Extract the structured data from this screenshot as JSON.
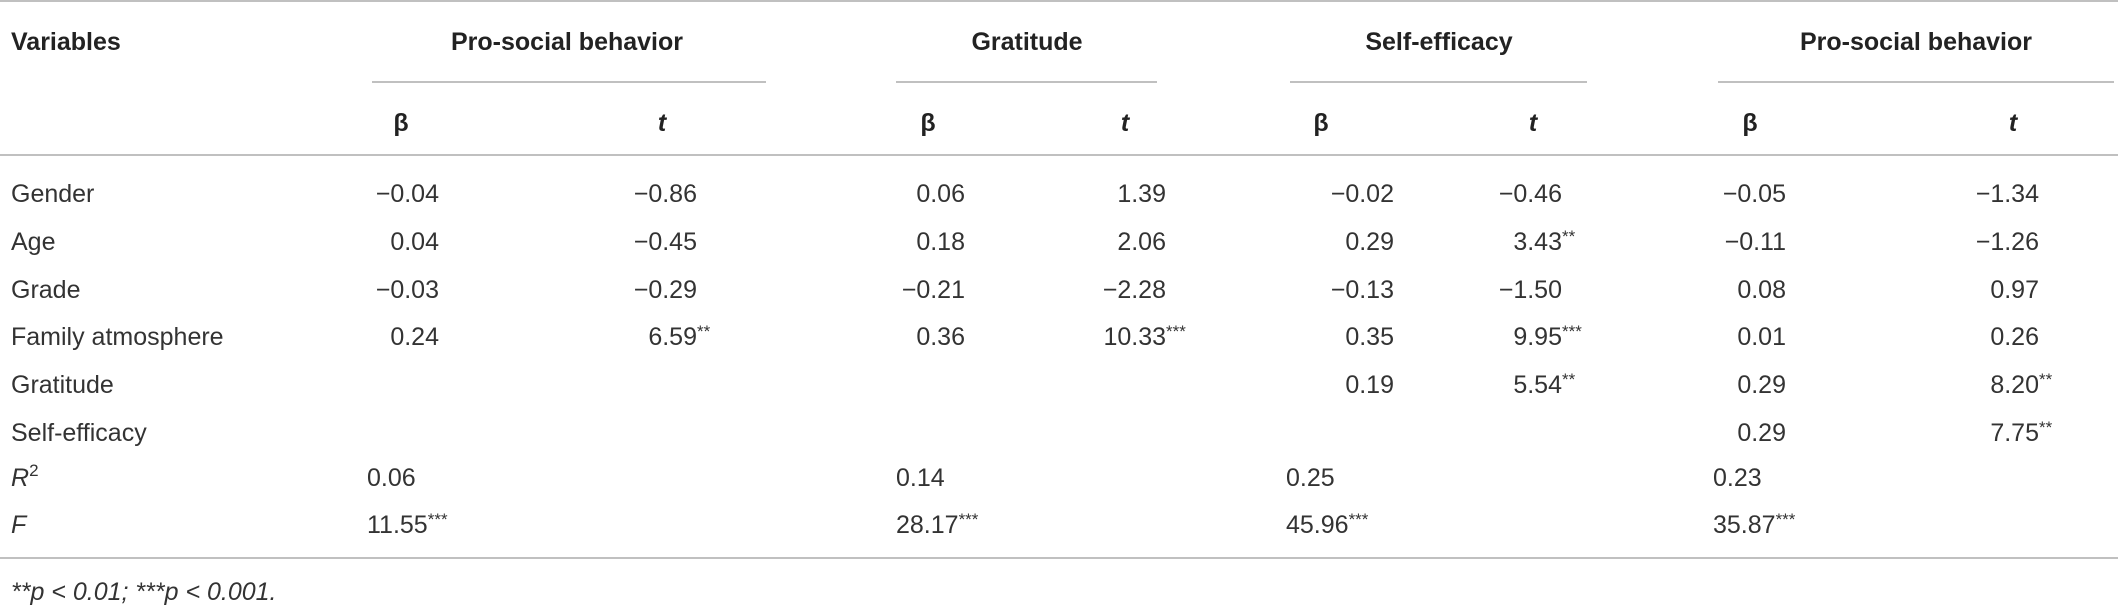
{
  "table": {
    "header": {
      "variables": "Variables",
      "groups": [
        "Pro-social behavior",
        "Gratitude",
        "Self-efficacy",
        "Pro-social behavior"
      ],
      "beta": "β",
      "t": "t"
    },
    "rows": [
      {
        "label": "Gender",
        "cells": [
          {
            "value": "−0.04"
          },
          {
            "value": "−0.86"
          },
          {
            "value": "0.06"
          },
          {
            "value": "1.39"
          },
          {
            "value": "−0.02"
          },
          {
            "value": "−0.46"
          },
          {
            "value": "−0.05"
          },
          {
            "value": "−1.34"
          }
        ]
      },
      {
        "label": "Age",
        "cells": [
          {
            "value": "0.04"
          },
          {
            "value": "−0.45"
          },
          {
            "value": "0.18"
          },
          {
            "value": "2.06"
          },
          {
            "value": "0.29"
          },
          {
            "value": "3.43",
            "sig": "**"
          },
          {
            "value": "−0.11"
          },
          {
            "value": "−1.26"
          }
        ]
      },
      {
        "label": "Grade",
        "cells": [
          {
            "value": "−0.03"
          },
          {
            "value": "−0.29"
          },
          {
            "value": "−0.21"
          },
          {
            "value": "−2.28"
          },
          {
            "value": "−0.13"
          },
          {
            "value": "−1.50"
          },
          {
            "value": "0.08"
          },
          {
            "value": "0.97"
          }
        ]
      },
      {
        "label": "Family atmosphere",
        "cells": [
          {
            "value": "0.24"
          },
          {
            "value": "6.59",
            "sig": "**"
          },
          {
            "value": "0.36"
          },
          {
            "value": "10.33",
            "sig": "***"
          },
          {
            "value": "0.35"
          },
          {
            "value": "9.95",
            "sig": "***"
          },
          {
            "value": "0.01"
          },
          {
            "value": "0.26"
          }
        ]
      },
      {
        "label": "Gratitude",
        "cells": [
          null,
          null,
          null,
          null,
          {
            "value": "0.19"
          },
          {
            "value": "5.54",
            "sig": "**"
          },
          {
            "value": "0.29"
          },
          {
            "value": "8.20",
            "sig": "**"
          }
        ]
      },
      {
        "label": "Self-efficacy",
        "cells": [
          null,
          null,
          null,
          null,
          null,
          null,
          {
            "value": "0.29"
          },
          {
            "value": "7.75",
            "sig": "**"
          }
        ]
      }
    ],
    "summary": [
      {
        "label": "R",
        "sup": "2",
        "cells": [
          {
            "value": "0.06"
          },
          {
            "value": "0.14"
          },
          {
            "value": "0.25"
          },
          {
            "value": "0.23"
          }
        ]
      },
      {
        "label": "F",
        "cells": [
          {
            "value": "11.55",
            "sig": "***"
          },
          {
            "value": "28.17",
            "sig": "***"
          },
          {
            "value": "45.96",
            "sig": "***"
          },
          {
            "value": "35.87",
            "sig": "***"
          }
        ]
      }
    ],
    "footnote": "**p < 0.01; ***p < 0.001."
  }
}
